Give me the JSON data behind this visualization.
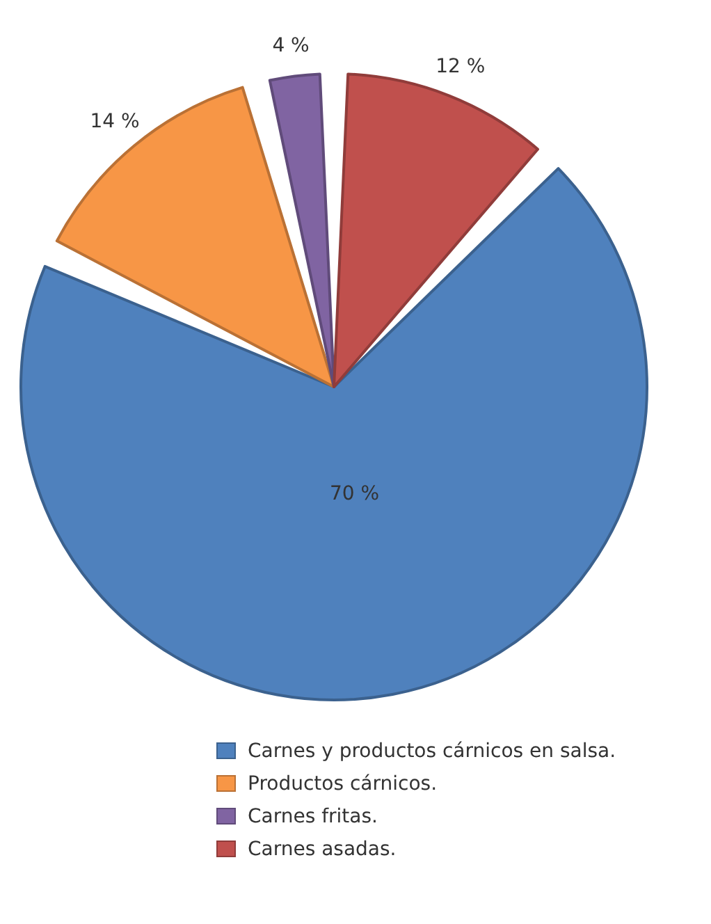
{
  "chart_data": {
    "type": "pie",
    "categories": [
      "Carnes y productos cárnicos en salsa.",
      "Productos cárnicos.",
      "Carnes fritas.",
      "Carnes asadas."
    ],
    "values": [
      70,
      14,
      4,
      12
    ],
    "colors": [
      "#4f81bd",
      "#f79646",
      "#8064a2",
      "#c0504d"
    ],
    "value_labels": [
      "70 %",
      "14 %",
      "4 %",
      "12 %"
    ],
    "legend": "bottom"
  }
}
